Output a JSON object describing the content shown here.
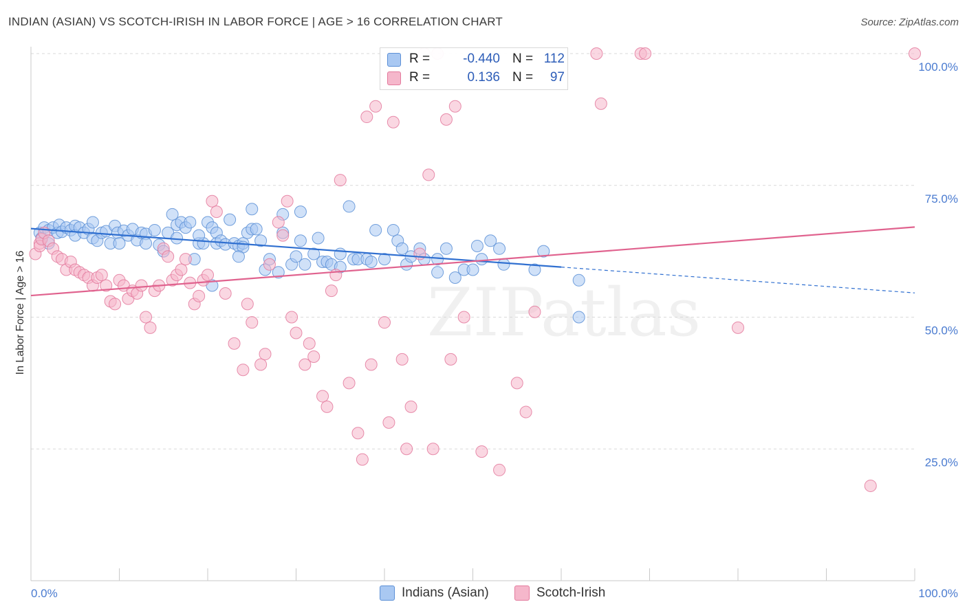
{
  "header": {
    "title": "INDIAN (ASIAN) VS SCOTCH-IRISH IN LABOR FORCE | AGE > 16 CORRELATION CHART",
    "source": "Source: ZipAtlas.com"
  },
  "watermark": "ZIPatlas",
  "legend": {
    "rows": [
      {
        "r_label": "R =",
        "r_value": "-0.440",
        "n_label": "N =",
        "n_value": "112",
        "color": "#a9c8f2"
      },
      {
        "r_label": "R =",
        "r_value": "0.136",
        "n_label": "N =",
        "n_value": "97",
        "color": "#f5b7cb"
      }
    ]
  },
  "bottom_legend": {
    "items": [
      {
        "label": "Indians (Asian)",
        "color": "#a9c8f2"
      },
      {
        "label": "Scotch-Irish",
        "color": "#f5b7cb"
      }
    ]
  },
  "chart_data": {
    "type": "scatter",
    "title": "INDIAN (ASIAN) VS SCOTCH-IRISH IN LABOR FORCE | AGE > 16 CORRELATION CHART",
    "ylabel": "In Labor Force | Age > 16",
    "xlabel": "",
    "xlim": [
      0,
      100
    ],
    "ylim": [
      0,
      100
    ],
    "x_tick_labels": [
      "0.0%",
      "100.0%"
    ],
    "y_tick_labels": [
      "25.0%",
      "50.0%",
      "75.0%",
      "100.0%"
    ],
    "y_ticks": [
      25,
      50,
      75,
      100
    ],
    "grid": true,
    "legend_placement": "top-center",
    "series": [
      {
        "name": "Indians (Asian)",
        "color": "#5b8fd6",
        "fill": "#a9c8f2",
        "trend": {
          "x0": 0,
          "y0": 66.8,
          "x1": 60,
          "y1": 59.5,
          "dash_x1": 100,
          "dash_y1": 54.6,
          "color": "#2f6fd0"
        },
        "points": [
          [
            1,
            66
          ],
          [
            1.2,
            65
          ],
          [
            1.5,
            67
          ],
          [
            2,
            66.5
          ],
          [
            2,
            64
          ],
          [
            2.5,
            67
          ],
          [
            3,
            66
          ],
          [
            3.2,
            67.5
          ],
          [
            3.5,
            66.2
          ],
          [
            4,
            67
          ],
          [
            4.5,
            66.5
          ],
          [
            5,
            67.3
          ],
          [
            5,
            65.5
          ],
          [
            5.5,
            67
          ],
          [
            6,
            66
          ],
          [
            6.5,
            66.7
          ],
          [
            7,
            68
          ],
          [
            7,
            65
          ],
          [
            7.5,
            64.5
          ],
          [
            8,
            66
          ],
          [
            8.5,
            66.3
          ],
          [
            9,
            64
          ],
          [
            9.5,
            67.3
          ],
          [
            9.8,
            66
          ],
          [
            10,
            64
          ],
          [
            10.5,
            66.4
          ],
          [
            11,
            65.5
          ],
          [
            11.5,
            66.7
          ],
          [
            12,
            64.6
          ],
          [
            12.5,
            66
          ],
          [
            13,
            65.8
          ],
          [
            13,
            64
          ],
          [
            14,
            66.5
          ],
          [
            14.5,
            63.7
          ],
          [
            15,
            62.5
          ],
          [
            15.5,
            66
          ],
          [
            16,
            69.5
          ],
          [
            16.5,
            65
          ],
          [
            16.5,
            67.5
          ],
          [
            17,
            68
          ],
          [
            17.5,
            67
          ],
          [
            18,
            68
          ],
          [
            18.5,
            61
          ],
          [
            19,
            64
          ],
          [
            19.5,
            64
          ],
          [
            20,
            68
          ],
          [
            20.5,
            67
          ],
          [
            21,
            66
          ],
          [
            19,
            65.5
          ],
          [
            20.5,
            56
          ],
          [
            21,
            64
          ],
          [
            21.5,
            64.5
          ],
          [
            22,
            63.8
          ],
          [
            22.5,
            68.5
          ],
          [
            23,
            64
          ],
          [
            23.5,
            63.5
          ],
          [
            24,
            64
          ],
          [
            24,
            63.3
          ],
          [
            24.5,
            66
          ],
          [
            25,
            66.7
          ],
          [
            23.5,
            61.5
          ],
          [
            25,
            70.5
          ],
          [
            25.5,
            66.7
          ],
          [
            26,
            64.5
          ],
          [
            26.5,
            59
          ],
          [
            27,
            61
          ],
          [
            28,
            58.5
          ],
          [
            28.5,
            66
          ],
          [
            28.5,
            69.5
          ],
          [
            29.5,
            60
          ],
          [
            30,
            61.5
          ],
          [
            30.5,
            70
          ],
          [
            30.5,
            64.5
          ],
          [
            31,
            60
          ],
          [
            32,
            62
          ],
          [
            32.5,
            65
          ],
          [
            33,
            60.5
          ],
          [
            33.5,
            60.5
          ],
          [
            34,
            60
          ],
          [
            35,
            62
          ],
          [
            35,
            59.5
          ],
          [
            36,
            71
          ],
          [
            36.5,
            61
          ],
          [
            37,
            61
          ],
          [
            38,
            61
          ],
          [
            38.5,
            60.5
          ],
          [
            39,
            66.5
          ],
          [
            40,
            61
          ],
          [
            41,
            66.5
          ],
          [
            41.5,
            64.5
          ],
          [
            42,
            63
          ],
          [
            42.5,
            60
          ],
          [
            43,
            61.5
          ],
          [
            44,
            63
          ],
          [
            44.5,
            61
          ],
          [
            46,
            61
          ],
          [
            46,
            58.5
          ],
          [
            47,
            63
          ],
          [
            48,
            57.5
          ],
          [
            49,
            59
          ],
          [
            50,
            59
          ],
          [
            50.5,
            63.5
          ],
          [
            51,
            61
          ],
          [
            52,
            64.5
          ],
          [
            53,
            63
          ],
          [
            53.5,
            60
          ],
          [
            58,
            62.5
          ],
          [
            57,
            59
          ],
          [
            62,
            57
          ],
          [
            62,
            50
          ]
        ]
      },
      {
        "name": "Scotch-Irish",
        "color": "#e3799c",
        "fill": "#f5b7cb",
        "trend": {
          "x0": 0,
          "y0": 54.1,
          "x1": 100,
          "y1": 67.1,
          "color": "#e0628e"
        },
        "points": [
          [
            0.5,
            62
          ],
          [
            1,
            64
          ],
          [
            1,
            63.5
          ],
          [
            1.2,
            64.8
          ],
          [
            1.5,
            66
          ],
          [
            2,
            64.5
          ],
          [
            2.5,
            63
          ],
          [
            3,
            61.5
          ],
          [
            3.5,
            61
          ],
          [
            4,
            59
          ],
          [
            4.5,
            60.5
          ],
          [
            5,
            59
          ],
          [
            5.5,
            58.5
          ],
          [
            6,
            58
          ],
          [
            6.5,
            57.5
          ],
          [
            7,
            56
          ],
          [
            7.5,
            57.5
          ],
          [
            8,
            58
          ],
          [
            8.5,
            56
          ],
          [
            9,
            53
          ],
          [
            9.5,
            52.5
          ],
          [
            10,
            57
          ],
          [
            10.5,
            56
          ],
          [
            11,
            53.5
          ],
          [
            11.5,
            55
          ],
          [
            12,
            54.5
          ],
          [
            12.5,
            56
          ],
          [
            13,
            50
          ],
          [
            13.5,
            48
          ],
          [
            14,
            55
          ],
          [
            14.5,
            56
          ],
          [
            15,
            63
          ],
          [
            15.5,
            61.5
          ],
          [
            16,
            57
          ],
          [
            16.5,
            58
          ],
          [
            17,
            59
          ],
          [
            17.5,
            61
          ],
          [
            18,
            56.5
          ],
          [
            18.5,
            52.5
          ],
          [
            19,
            54
          ],
          [
            19.5,
            57
          ],
          [
            20,
            58
          ],
          [
            20.5,
            72
          ],
          [
            21,
            70
          ],
          [
            22,
            54.5
          ],
          [
            23,
            45
          ],
          [
            24,
            40
          ],
          [
            24.5,
            52.5
          ],
          [
            25,
            49
          ],
          [
            26,
            41
          ],
          [
            26.5,
            43
          ],
          [
            27,
            60
          ],
          [
            28,
            68
          ],
          [
            28.5,
            65.5
          ],
          [
            29,
            72
          ],
          [
            29.5,
            50
          ],
          [
            30,
            47
          ],
          [
            31,
            41
          ],
          [
            31.5,
            45
          ],
          [
            32,
            42.5
          ],
          [
            33,
            35
          ],
          [
            33.5,
            33
          ],
          [
            34,
            55
          ],
          [
            34.5,
            58
          ],
          [
            35,
            76
          ],
          [
            36,
            37.5
          ],
          [
            37,
            28
          ],
          [
            37.5,
            23
          ],
          [
            38,
            88
          ],
          [
            38.5,
            41
          ],
          [
            39,
            90
          ],
          [
            40,
            49
          ],
          [
            40.5,
            30
          ],
          [
            41,
            87
          ],
          [
            42,
            42
          ],
          [
            42.5,
            25
          ],
          [
            43,
            33
          ],
          [
            44,
            62
          ],
          [
            44.5,
            100
          ],
          [
            45,
            77
          ],
          [
            45.5,
            25
          ],
          [
            46,
            100
          ],
          [
            47,
            87.5
          ],
          [
            47.5,
            42
          ],
          [
            48,
            90
          ],
          [
            49,
            50
          ],
          [
            51,
            24.5
          ],
          [
            53,
            21
          ],
          [
            55,
            37.5
          ],
          [
            56,
            32
          ],
          [
            57,
            51
          ],
          [
            64,
            100
          ],
          [
            64.5,
            90.5
          ],
          [
            69,
            100
          ],
          [
            69.5,
            100
          ],
          [
            80,
            48
          ],
          [
            95,
            18
          ],
          [
            100,
            100
          ]
        ]
      }
    ]
  }
}
